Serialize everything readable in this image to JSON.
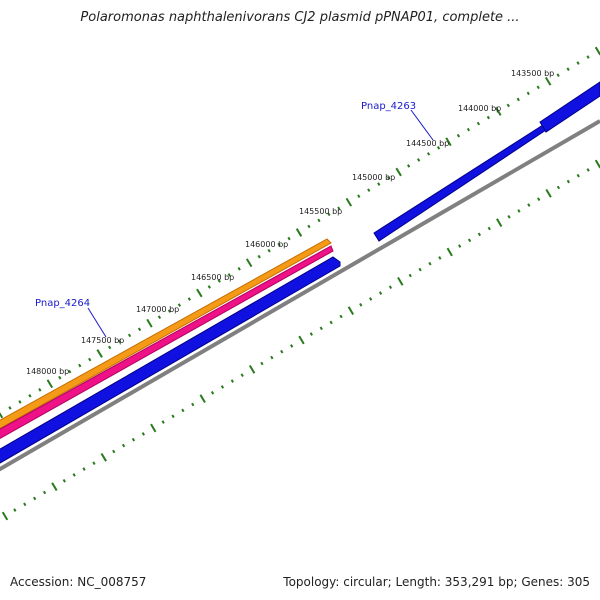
{
  "title": "Polaromonas naphthalenivorans CJ2 plasmid pPNAP01, complete ...",
  "footer": {
    "accession": "Accession: NC_008757",
    "summary": "Topology: circular; Length: 353,291 bp; Genes: 305"
  },
  "colors": {
    "tick": "#2a7a1e",
    "gene_blue": "#1010e0",
    "track_orange": "#f59a16",
    "track_magenta": "#ee1188",
    "backbone": "#808080",
    "label_blue": "#1a1acc"
  },
  "scale_labels": [
    "143500 bp",
    "144000 bp",
    "144500 bp",
    "145000 bp",
    "145500 bp",
    "146000 bp",
    "146500 bp",
    "147000 bp",
    "147500 bp",
    "148000 bp"
  ],
  "genes": [
    {
      "name": "Pnap_4263"
    },
    {
      "name": "Pnap_4264"
    }
  ]
}
